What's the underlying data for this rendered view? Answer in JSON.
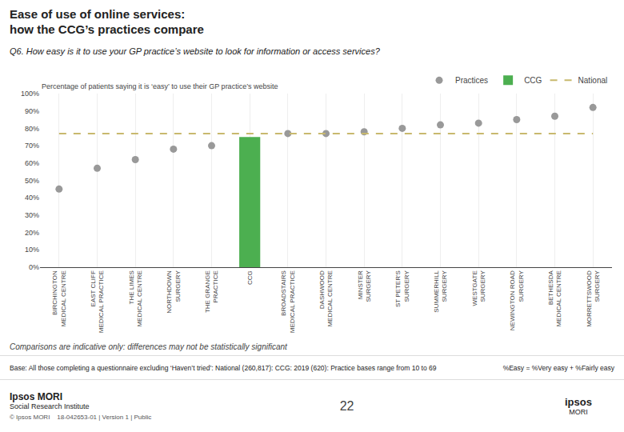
{
  "chart_data": {
    "type": "scatter",
    "title": "Ease of use of online services:\nhow the CCG’s practices compare",
    "subtitle": "Q6. How easy is it to use your GP practice’s website to look for information or access services?",
    "y_label": "Percentage of patients saying it is ‘easy’ to use their GP practice’s website",
    "categories": [
      "BIRCHINGTON\nMEDICAL CENTRE",
      "EAST CLIFF\nMEDICAL PRACTICE",
      "THE LIMES\nMEDICAL CENTRE",
      "NORTHDOWN\nSURGERY",
      "THE GRANGE\nPRACTICE",
      "CCG",
      "BROADSTAIRS\nMEDICAL PRACTICE",
      "DASHWOOD\nMEDICAL CENTRE",
      "MINSTER\nSURGERY",
      "ST PETER'S\nSURGERY",
      "SUMMERHILL\nSURGERY",
      "WESTGATE\nSURGERY",
      "NEWINGTON ROAD\nSURGERY",
      "BETHESDA\nMEDICAL CENTRE",
      "MORRETTSWOOD\nSURGERY"
    ],
    "series": [
      {
        "name": "Practices",
        "type": "scatter",
        "marker": "circle",
        "color": "#999999",
        "values": [
          45,
          57,
          62,
          68,
          70,
          null,
          77,
          77,
          78,
          80,
          82,
          83,
          85,
          87,
          92
        ]
      },
      {
        "name": "CCG",
        "type": "bar",
        "color": "#4caf50",
        "values": [
          null,
          null,
          null,
          null,
          null,
          75,
          null,
          null,
          null,
          null,
          null,
          null,
          null,
          null,
          null
        ]
      },
      {
        "name": "National",
        "type": "line",
        "line_style": "dashed",
        "color": "#c8b96e",
        "values": [
          77,
          77,
          77,
          77,
          77,
          77,
          77,
          77,
          77,
          77,
          77,
          77,
          77,
          77,
          77
        ]
      }
    ],
    "ylim": [
      0,
      100
    ],
    "yticks": [
      {
        "value": 0,
        "label": "0%"
      },
      {
        "value": 10,
        "label": "10%"
      },
      {
        "value": 20,
        "label": "20%"
      },
      {
        "value": 30,
        "label": "30%"
      },
      {
        "value": 40,
        "label": "40%"
      },
      {
        "value": 50,
        "label": "50%"
      },
      {
        "value": 60,
        "label": "60%"
      },
      {
        "value": 70,
        "label": "70%"
      },
      {
        "value": 80,
        "label": "80%"
      },
      {
        "value": 90,
        "label": "90%"
      },
      {
        "value": 100,
        "label": "100%"
      }
    ],
    "grid": "x",
    "legend": "top right",
    "annotations": [
      "Comparisons are indicative only: differences may not be statistically significant",
      "Base: All those completing a questionnaire excluding ‘Haven’t tried’: National (260,817): CCG: 2019 (620): Practice bases range from 10 to 69",
      "%Easy = %Very easy + %Fairly easy",
      "Ipsos MORI",
      "Social Research Institute",
      "© Ipsos MORI    18-042653-01 | Version 1 | Public",
      "22",
      "ipsos",
      "MORI"
    ]
  }
}
